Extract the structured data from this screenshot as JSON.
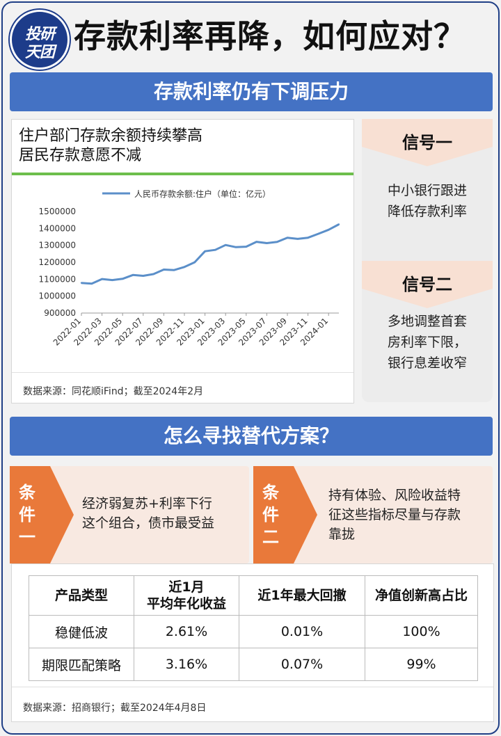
{
  "header": {
    "logo_line1": "投研",
    "logo_line2": "天团",
    "title": "存款利率再降，如何应对？"
  },
  "section1": {
    "banner": "存款利率仍有下调压力",
    "chart_card": {
      "heading_line1": "住户部门存款余额持续攀高",
      "heading_line2": "居民存款意愿不减",
      "source": "数据来源：同花顺iFind；截至2024年2月"
    },
    "signals": [
      {
        "title": "信号一",
        "lines": [
          "中小银行跟进",
          "降低存款利率"
        ]
      },
      {
        "title": "信号二",
        "lines": [
          "多地调整首套",
          "房利率下限，",
          "银行息差收窄"
        ]
      }
    ]
  },
  "section2": {
    "banner": "怎么寻找替代方案？",
    "conditions": [
      {
        "label": [
          "条",
          "件",
          "一"
        ],
        "lines": [
          "经济弱复苏+利率下行",
          "这个组合，债市最受益"
        ]
      },
      {
        "label": [
          "条",
          "件",
          "二"
        ],
        "lines": [
          "持有体验、风险收益特",
          "征这些指标尽量与存款",
          "靠拢"
        ]
      }
    ],
    "table": {
      "headers": [
        "产品类型",
        "近1月\n平均年化收益",
        "近1年最大回撤",
        "净值创新高占比"
      ],
      "rows": [
        [
          "稳健低波",
          "2.61%",
          "0.01%",
          "100%"
        ],
        [
          "期限匹配策略",
          "3.16%",
          "0.07%",
          "99%"
        ]
      ],
      "source": "数据来源：招商银行；截至2024年4月8日"
    }
  },
  "colors": {
    "brand_blue": "#4472c4",
    "navy": "#1f3f86",
    "orange": "#e9793a",
    "peach": "#f8e9e1",
    "green_rule": "#6dbe4b",
    "line": "#5b8fc9"
  },
  "chart_data": {
    "type": "line",
    "title": "",
    "series": [
      {
        "name": "人民币存款余额:住户（单位：亿元）",
        "values": [
          1078000,
          1074000,
          1101000,
          1095000,
          1102000,
          1125000,
          1120000,
          1130000,
          1157000,
          1154000,
          1172000,
          1200000,
          1265000,
          1273000,
          1302000,
          1289000,
          1292000,
          1321000,
          1313000,
          1320000,
          1345000,
          1338000,
          1345000,
          1368000,
          1392000,
          1424000
        ]
      }
    ],
    "x": [
      "2022-01",
      "2022-02",
      "2022-03",
      "2022-04",
      "2022-05",
      "2022-06",
      "2022-07",
      "2022-08",
      "2022-09",
      "2022-10",
      "2022-11",
      "2022-12",
      "2023-01",
      "2023-02",
      "2023-03",
      "2023-04",
      "2023-05",
      "2023-06",
      "2023-07",
      "2023-08",
      "2023-09",
      "2023-10",
      "2023-11",
      "2023-12",
      "2024-01",
      "2024-02"
    ],
    "x_tick_labels": [
      "2022-01",
      "2022-03",
      "2022-05",
      "2022-07",
      "2022-09",
      "2022-11",
      "2023-01",
      "2023-03",
      "2023-05",
      "2023-07",
      "2023-09",
      "2023-11",
      "2024-01"
    ],
    "y_tick_labels": [
      "900000",
      "1000000",
      "1100000",
      "1200000",
      "1300000",
      "1400000",
      "1500000"
    ],
    "ylim": [
      900000,
      1500000
    ],
    "grid": false,
    "legend": "top"
  }
}
